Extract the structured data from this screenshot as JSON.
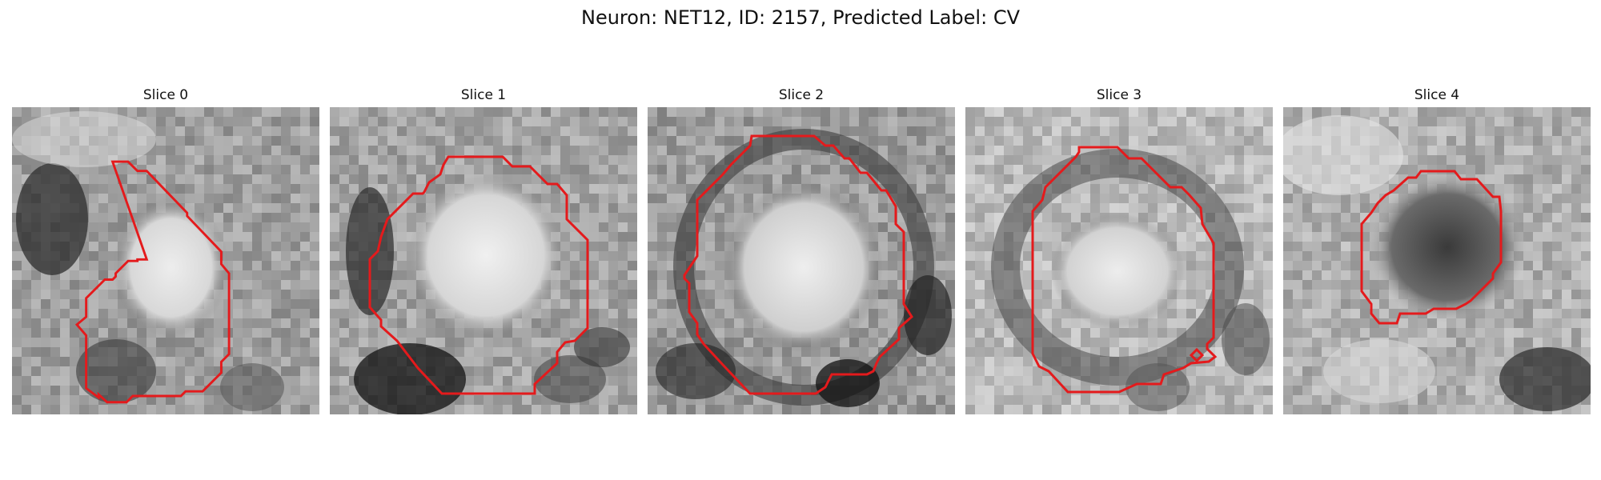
{
  "figure": {
    "title": "Neuron: NET12, ID: 2157, Predicted Label: CV",
    "contour_color": "#e41a1c",
    "image_colormap": "gray"
  },
  "panels": [
    {
      "title": "Slice 0"
    },
    {
      "title": "Slice 1"
    },
    {
      "title": "Slice 2"
    },
    {
      "title": "Slice 3"
    },
    {
      "title": "Slice 4"
    }
  ]
}
